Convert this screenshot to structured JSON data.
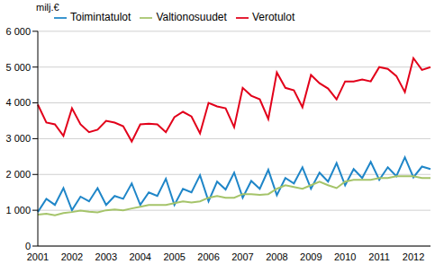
{
  "chart_data": {
    "type": "line",
    "ylabel": "milj.€",
    "categories": [
      "2001",
      null,
      null,
      null,
      "2002",
      null,
      null,
      null,
      "2003",
      null,
      null,
      null,
      "2004",
      null,
      null,
      null,
      "2005",
      null,
      null,
      null,
      "2006",
      null,
      null,
      null,
      "2007",
      null,
      null,
      null,
      "2008",
      null,
      null,
      null,
      "2009",
      null,
      null,
      null,
      "2010",
      null,
      null,
      null,
      "2011",
      null,
      null,
      null,
      "2012",
      null,
      null
    ],
    "series": [
      {
        "name": "Verotulot",
        "color": "#e2001a",
        "values": [
          3950,
          3450,
          3400,
          3080,
          3850,
          3400,
          3180,
          3250,
          3500,
          3450,
          3350,
          2920,
          3400,
          3420,
          3400,
          3180,
          3600,
          3750,
          3620,
          3150,
          4000,
          3900,
          3850,
          3320,
          4420,
          4200,
          4100,
          3550,
          4850,
          4420,
          4350,
          3880,
          4780,
          4550,
          4400,
          4100,
          4600,
          4600,
          4650,
          4600,
          5000,
          4950,
          4750,
          4300,
          5250,
          4920,
          5000
        ]
      },
      {
        "name": "Toimintatulot",
        "color": "#1f86c8",
        "values": [
          950,
          1320,
          1150,
          1620,
          1000,
          1380,
          1250,
          1620,
          1150,
          1400,
          1320,
          1750,
          1150,
          1500,
          1400,
          1880,
          1150,
          1600,
          1500,
          1980,
          1250,
          1800,
          1580,
          2050,
          1350,
          1820,
          1600,
          2130,
          1420,
          1900,
          1750,
          2200,
          1600,
          2050,
          1800,
          2320,
          1700,
          2150,
          1900,
          2350,
          1850,
          2200,
          1950,
          2480,
          1920,
          2220,
          2150
        ]
      },
      {
        "name": "Valtionosuudet",
        "color": "#a5c46a",
        "values": [
          880,
          900,
          860,
          920,
          950,
          990,
          960,
          940,
          1000,
          1020,
          1000,
          1050,
          1100,
          1150,
          1150,
          1150,
          1200,
          1250,
          1220,
          1250,
          1350,
          1400,
          1350,
          1350,
          1450,
          1450,
          1430,
          1450,
          1600,
          1700,
          1650,
          1600,
          1700,
          1800,
          1700,
          1620,
          1800,
          1850,
          1850,
          1850,
          1900,
          1900,
          1950,
          1950,
          1950,
          1900,
          1900
        ]
      }
    ],
    "ylim": [
      0,
      6000
    ],
    "yticks": [
      0,
      {
        "value": 1000,
        "label": "1 000"
      },
      {
        "value": 2000,
        "label": "2 000"
      },
      {
        "value": 3000,
        "label": "3 000"
      },
      {
        "value": 4000,
        "label": "4 000"
      },
      {
        "value": 5000,
        "label": "5 000"
      },
      {
        "value": 6000,
        "label": "6 000"
      }
    ],
    "grid": true,
    "legend": "top-left"
  }
}
